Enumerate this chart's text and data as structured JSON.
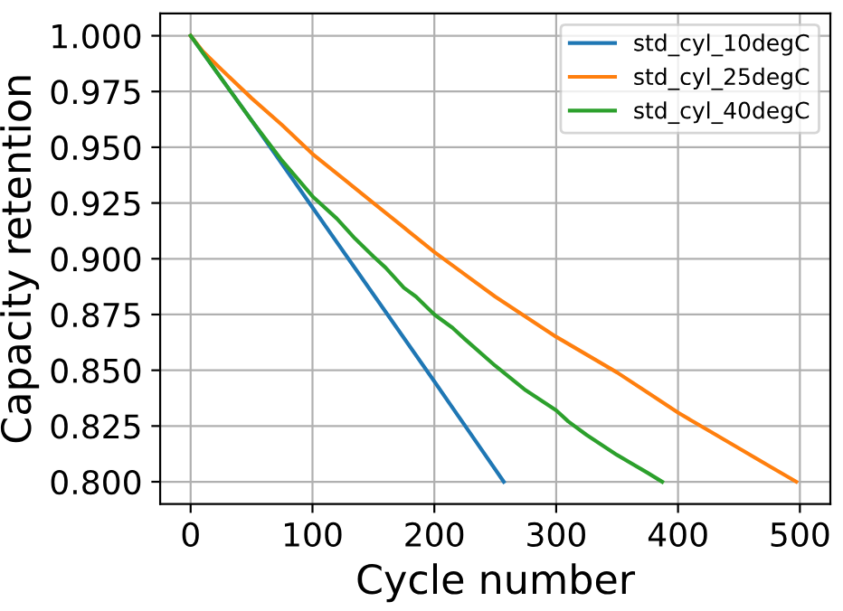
{
  "chart_data": {
    "type": "line",
    "xlabel": "Cycle number",
    "ylabel": "Capacity retention",
    "xlim": [
      -25,
      525
    ],
    "ylim": [
      0.79,
      1.01
    ],
    "xticks": [
      0,
      100,
      200,
      300,
      400,
      500
    ],
    "yticks": [
      {
        "value": 0.8,
        "label": "0.800"
      },
      {
        "value": 0.825,
        "label": "0.825"
      },
      {
        "value": 0.85,
        "label": "0.850"
      },
      {
        "value": 0.875,
        "label": "0.875"
      },
      {
        "value": 0.9,
        "label": "0.900"
      },
      {
        "value": 0.925,
        "label": "0.925"
      },
      {
        "value": 0.95,
        "label": "0.950"
      },
      {
        "value": 0.975,
        "label": "0.975"
      },
      {
        "value": 1.0,
        "label": "1.000"
      }
    ],
    "grid": true,
    "legend": "top right",
    "series": [
      {
        "name": "std_cyl_10degC",
        "color": "#1f77b4",
        "x": [
          0,
          50,
          100,
          150,
          200,
          257
        ],
        "values": [
          1.0,
          0.962,
          0.923,
          0.884,
          0.845,
          0.8
        ]
      },
      {
        "name": "std_cyl_25degC",
        "color": "#ff7f0e",
        "x": [
          0,
          10,
          25,
          50,
          75,
          100,
          125,
          150,
          175,
          200,
          225,
          250,
          275,
          300,
          325,
          350,
          375,
          400,
          425,
          450,
          475,
          497
        ],
        "values": [
          1.0,
          0.993,
          0.985,
          0.972,
          0.96,
          0.947,
          0.936,
          0.925,
          0.914,
          0.903,
          0.893,
          0.883,
          0.874,
          0.865,
          0.857,
          0.849,
          0.84,
          0.831,
          0.823,
          0.815,
          0.807,
          0.8
        ]
      },
      {
        "name": "std_cyl_40degC",
        "color": "#2ca02c",
        "x": [
          0,
          25,
          50,
          75,
          100,
          120,
          135,
          150,
          160,
          175,
          185,
          200,
          215,
          225,
          250,
          275,
          300,
          310,
          325,
          350,
          375,
          387
        ],
        "values": [
          1.0,
          0.981,
          0.962,
          0.944,
          0.928,
          0.918,
          0.909,
          0.901,
          0.896,
          0.887,
          0.883,
          0.875,
          0.869,
          0.864,
          0.852,
          0.841,
          0.832,
          0.827,
          0.821,
          0.812,
          0.804,
          0.8
        ]
      }
    ]
  }
}
